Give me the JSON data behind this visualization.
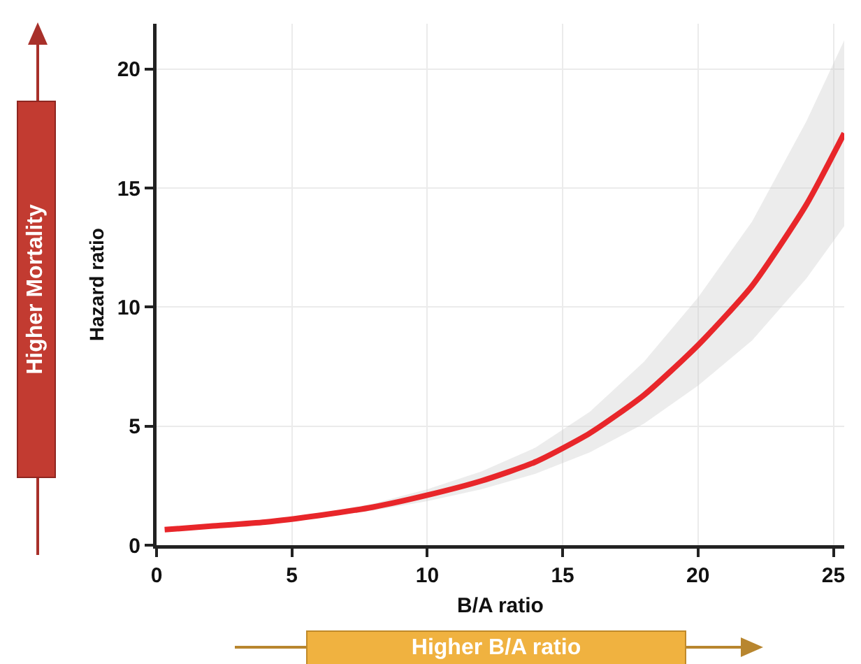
{
  "chart_data": {
    "type": "line",
    "xlabel": "B/A ratio",
    "ylabel": "Hazard ratio",
    "x": [
      0.3,
      2,
      4,
      6,
      8,
      10,
      12,
      14,
      16,
      18,
      20,
      22,
      24,
      25.4
    ],
    "series": [
      {
        "color": "#e8262a",
        "values": [
          0.65,
          0.8,
          0.97,
          1.25,
          1.6,
          2.1,
          2.7,
          3.5,
          4.7,
          6.3,
          8.4,
          10.9,
          14.3,
          17.3
        ],
        "lower": [
          0.6,
          0.75,
          0.92,
          1.17,
          1.45,
          1.85,
          2.35,
          3.0,
          3.9,
          5.1,
          6.7,
          8.6,
          11.2,
          13.4
        ],
        "upper": [
          0.7,
          0.85,
          1.03,
          1.33,
          1.75,
          2.35,
          3.1,
          4.1,
          5.6,
          7.7,
          10.4,
          13.6,
          17.8,
          21.2
        ]
      }
    ],
    "xlim": [
      0,
      25.4
    ],
    "xticks": [
      0,
      5,
      10,
      15,
      20,
      25
    ],
    "ylim": [
      0,
      21.9
    ],
    "yticks": [
      0,
      5,
      10,
      15,
      20
    ],
    "grid": true,
    "marker": "none",
    "line_style": "solid",
    "annotations": [
      "Higher Mortality",
      "Higher B/A ratio"
    ]
  }
}
